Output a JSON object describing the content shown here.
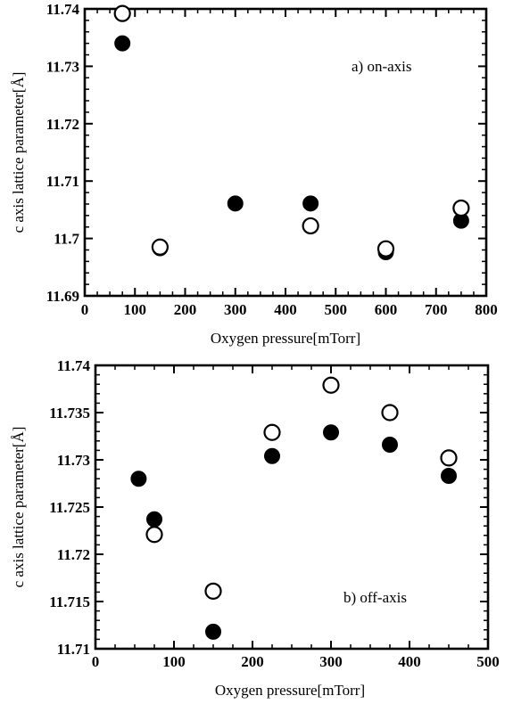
{
  "chart_data": [
    {
      "type": "scatter",
      "annotation": "a) on-axis",
      "xlabel": "Oxygen pressure[mTorr]",
      "ylabel": "c axis lattice parameter[Å]",
      "xlim": [
        0,
        800
      ],
      "ylim": [
        11.69,
        11.74
      ],
      "xticks": [
        0,
        100,
        200,
        300,
        400,
        500,
        600,
        700,
        800
      ],
      "xtick_labels": [
        "0",
        "100",
        "200",
        "300",
        "400",
        "500",
        "600",
        "700",
        "800"
      ],
      "yticks": [
        11.69,
        11.7,
        11.71,
        11.72,
        11.73,
        11.74
      ],
      "ytick_labels": [
        "11.69",
        "11.7",
        "11.71",
        "11.72",
        "11.73",
        "11.74"
      ],
      "grid": false,
      "series": [
        {
          "marker": "filled-circle",
          "x": [
            75,
            150,
            300,
            450,
            600,
            750
          ],
          "y": [
            11.734,
            11.6983,
            11.7061,
            11.7061,
            11.6976,
            11.7031
          ]
        },
        {
          "marker": "open-circle",
          "x": [
            75,
            150,
            450,
            600,
            750
          ],
          "y": [
            11.7392,
            11.6985,
            11.7022,
            11.6982,
            11.7053
          ]
        }
      ]
    },
    {
      "type": "scatter",
      "annotation": "b) off-axis",
      "xlabel": "Oxygen pressure[mTorr]",
      "ylabel": "c axis lattice parameter[Å]",
      "xlim": [
        0,
        500
      ],
      "ylim": [
        11.71,
        11.74
      ],
      "xticks": [
        0,
        100,
        200,
        300,
        400,
        500
      ],
      "xtick_labels": [
        "0",
        "100",
        "200",
        "300",
        "400",
        "500"
      ],
      "yticks": [
        11.71,
        11.715,
        11.72,
        11.725,
        11.73,
        11.735,
        11.74
      ],
      "ytick_labels": [
        "11.71",
        "11.715",
        "11.72",
        "11.725",
        "11.73",
        "11.735",
        "11.74"
      ],
      "grid": false,
      "series": [
        {
          "marker": "filled-circle",
          "x": [
            55,
            75,
            150,
            225,
            300,
            375,
            450
          ],
          "y": [
            11.728,
            11.7237,
            11.7118,
            11.7304,
            11.7329,
            11.7316,
            11.7283
          ]
        },
        {
          "marker": "open-circle",
          "x": [
            75,
            150,
            225,
            300,
            375,
            450
          ],
          "y": [
            11.7221,
            11.7161,
            11.7329,
            11.7379,
            11.735,
            11.7302
          ]
        }
      ]
    }
  ]
}
